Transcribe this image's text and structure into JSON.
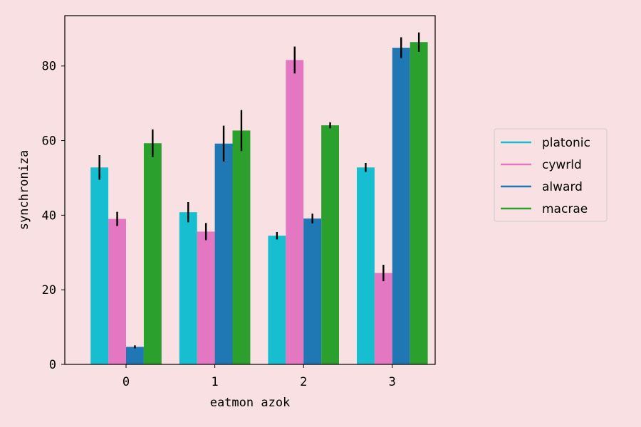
{
  "chart_data": {
    "type": "bar",
    "categories": [
      "0",
      "1",
      "2",
      "3"
    ],
    "xlabel": "eatmon azok",
    "ylabel": "synchroniza",
    "ylim": [
      0,
      93.5
    ],
    "yticks": [
      0,
      20,
      40,
      60,
      80
    ],
    "grid": false,
    "legend_position": "right",
    "series": [
      {
        "name": "platonic",
        "color": "#17becf",
        "values": [
          52.8,
          40.8,
          34.5,
          52.8
        ],
        "errors": [
          3.3,
          2.7,
          1.0,
          1.2
        ]
      },
      {
        "name": "cywrld",
        "color": "#e377c2",
        "values": [
          39.0,
          35.6,
          81.6,
          24.5
        ],
        "errors": [
          1.9,
          2.3,
          3.6,
          2.2
        ]
      },
      {
        "name": "alward",
        "color": "#1f77b4",
        "values": [
          4.7,
          59.2,
          39.1,
          84.9
        ],
        "errors": [
          0.4,
          4.8,
          1.3,
          2.8
        ]
      },
      {
        "name": "macrae",
        "color": "#2ca02c",
        "values": [
          59.3,
          62.7,
          64.1,
          86.4
        ],
        "errors": [
          3.7,
          5.5,
          0.8,
          2.6
        ]
      }
    ]
  }
}
